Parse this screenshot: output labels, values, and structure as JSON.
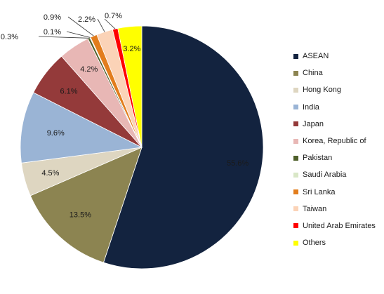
{
  "chart_data": {
    "type": "pie",
    "title": "",
    "slices": [
      {
        "label": "ASEAN",
        "value": 55.6,
        "value_label": "55.6%",
        "color": "#13233f"
      },
      {
        "label": "China",
        "value": 13.5,
        "value_label": "13.5%",
        "color": "#8c8451"
      },
      {
        "label": "Hong Kong",
        "value": 4.5,
        "value_label": "4.5%",
        "color": "#ded6c1"
      },
      {
        "label": "India",
        "value": 9.6,
        "value_label": "9.6%",
        "color": "#9ab4d5"
      },
      {
        "label": "Japan",
        "value": 6.1,
        "value_label": "6.1%",
        "color": "#943a3a"
      },
      {
        "label": "Korea, Republic of",
        "value": 4.2,
        "value_label": "4.2%",
        "color": "#e8b7b5"
      },
      {
        "label": "Pakistan",
        "value": 0.3,
        "value_label": "0.3%",
        "color": "#4e5f2a"
      },
      {
        "label": "Saudi Arabia",
        "value": 0.1,
        "value_label": "0.1%",
        "color": "#d9e7c7"
      },
      {
        "label": "Sri Lanka",
        "value": 0.9,
        "value_label": "0.9%",
        "color": "#e27d1d"
      },
      {
        "label": "Taiwan",
        "value": 2.2,
        "value_label": "2.2%",
        "color": "#fbd3b7"
      },
      {
        "label": "United Arab Emirates",
        "value": 0.7,
        "value_label": "0.7%",
        "color": "#ff0000"
      },
      {
        "label": "Others",
        "value": 3.2,
        "value_label": "3.2%",
        "color": "#ffff00"
      }
    ],
    "legend_position": "right"
  }
}
